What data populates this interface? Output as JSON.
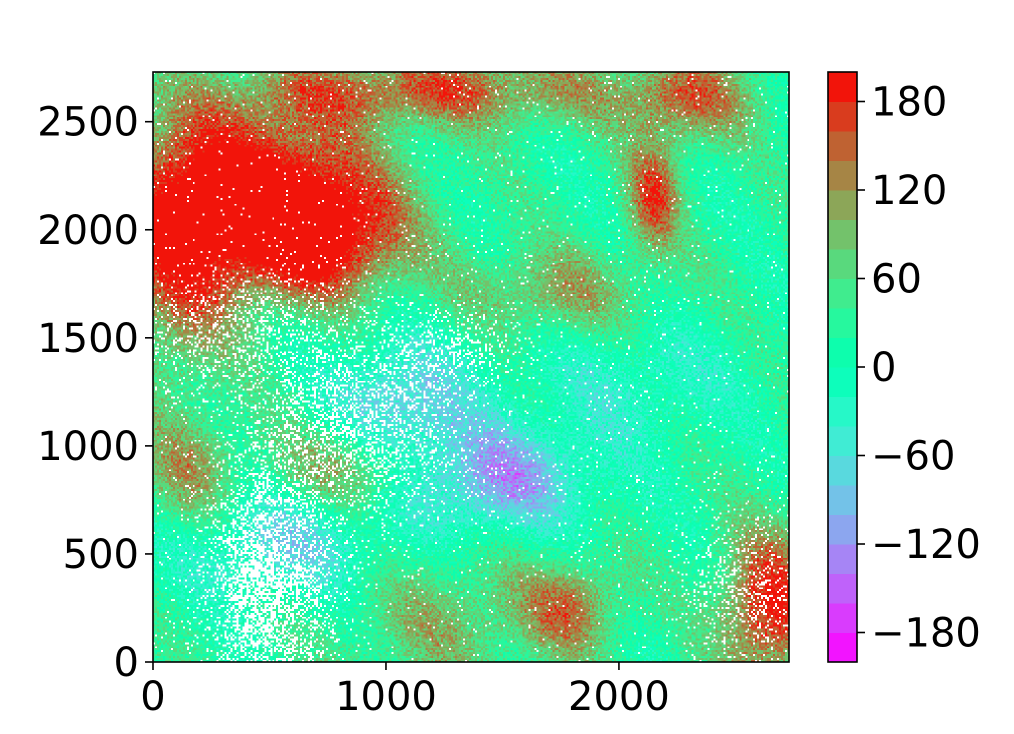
{
  "chart_data": {
    "type": "heatmap",
    "title": "",
    "xlabel": "",
    "ylabel": "",
    "xlim": [
      0,
      2730
    ],
    "ylim": [
      0,
      2730
    ],
    "x_ticks": [
      {
        "value": 0,
        "label": "0"
      },
      {
        "value": 1000,
        "label": "1000"
      },
      {
        "value": 2000,
        "label": "2000"
      }
    ],
    "y_ticks": [
      {
        "value": 0,
        "label": "0"
      },
      {
        "value": 500,
        "label": "500"
      },
      {
        "value": 1000,
        "label": "1000"
      },
      {
        "value": 1500,
        "label": "1500"
      },
      {
        "value": 2000,
        "label": "2000"
      },
      {
        "value": 2500,
        "label": "2500"
      }
    ],
    "colorbar": {
      "colormap": "rainbow",
      "vmin": -200,
      "vmax": 200,
      "levels": 20,
      "ticks": [
        {
          "value": 180,
          "label": "180"
        },
        {
          "value": 120,
          "label": "120"
        },
        {
          "value": 60,
          "label": "60"
        },
        {
          "value": 0,
          "label": "0"
        },
        {
          "value": -60,
          "label": "−60"
        },
        {
          "value": -120,
          "label": "−120"
        },
        {
          "value": -180,
          "label": "−180"
        }
      ]
    },
    "background_value": 20,
    "regions": [
      {
        "x": 400,
        "y": 2200,
        "sx": 380,
        "sy": 260,
        "amp": 200
      },
      {
        "x": 700,
        "y": 1950,
        "sx": 260,
        "sy": 200,
        "amp": 180
      },
      {
        "x": 100,
        "y": 1800,
        "sx": 200,
        "sy": 350,
        "amp": 120
      },
      {
        "x": 1200,
        "y": 2650,
        "sx": 600,
        "sy": 120,
        "amp": 130
      },
      {
        "x": 2300,
        "y": 2600,
        "sx": 200,
        "sy": 150,
        "amp": 110
      },
      {
        "x": 2150,
        "y": 2150,
        "sx": 80,
        "sy": 180,
        "amp": 140
      },
      {
        "x": 1700,
        "y": 1700,
        "sx": 300,
        "sy": 150,
        "amp": 90
      },
      {
        "x": 1050,
        "y": 1150,
        "sx": 200,
        "sy": 200,
        "amp": -110
      },
      {
        "x": 1450,
        "y": 850,
        "sx": 300,
        "sy": 180,
        "amp": -140
      },
      {
        "x": 550,
        "y": 550,
        "sx": 350,
        "sy": 180,
        "amp": -90
      },
      {
        "x": 2100,
        "y": 1300,
        "sx": 300,
        "sy": 200,
        "amp": -50
      },
      {
        "x": 900,
        "y": 900,
        "sx": 250,
        "sy": 150,
        "amp": 120
      },
      {
        "x": 1250,
        "y": 200,
        "sx": 300,
        "sy": 250,
        "amp": 70
      },
      {
        "x": 2650,
        "y": 250,
        "sx": 150,
        "sy": 250,
        "amp": 180
      },
      {
        "x": 1800,
        "y": 250,
        "sx": 150,
        "sy": 150,
        "amp": 110
      },
      {
        "x": 150,
        "y": 850,
        "sx": 150,
        "sy": 200,
        "amp": 90
      },
      {
        "x": 1300,
        "y": 1500,
        "sx": 400,
        "sy": 200,
        "amp": -20
      }
    ],
    "masked_regions": [
      {
        "x": 500,
        "y": 350,
        "sx": 150,
        "sy": 320,
        "frac": 0.7
      },
      {
        "x": 850,
        "y": 1100,
        "sx": 280,
        "sy": 250,
        "frac": 0.35
      },
      {
        "x": 350,
        "y": 1550,
        "sx": 300,
        "sy": 150,
        "frac": 0.25
      },
      {
        "x": 1300,
        "y": 1450,
        "sx": 150,
        "sy": 100,
        "frac": 0.3
      },
      {
        "x": 2550,
        "y": 350,
        "sx": 150,
        "sy": 200,
        "frac": 0.25
      }
    ]
  }
}
